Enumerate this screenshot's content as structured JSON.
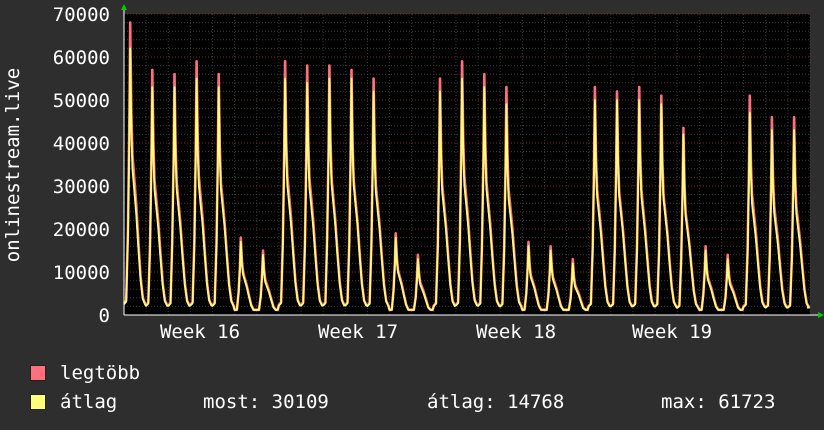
{
  "chart_data": {
    "type": "area",
    "ylabel": "onlinestream.live",
    "ylim": [
      0,
      70000
    ],
    "yticks": [
      0,
      10000,
      20000,
      30000,
      40000,
      50000,
      60000,
      70000
    ],
    "ytick_labels": [
      "0",
      "10000",
      "20000",
      "30000",
      "40000",
      "50000",
      "60000",
      "70000"
    ],
    "xticks": [
      "Week 16",
      "Week 17",
      "Week 18",
      "Week 19"
    ],
    "grid": true,
    "series": [
      {
        "name": "legtöbb",
        "color": "#ff6f7c",
        "daily_peaks": [
          68000,
          57000,
          56000,
          59000,
          56000,
          18000,
          15000,
          59000,
          58000,
          58000,
          57000,
          55000,
          19000,
          14000,
          55000,
          59000,
          56000,
          53000,
          17000,
          16000,
          13000,
          53000,
          52000,
          53000,
          51000,
          43500,
          16000,
          14000,
          51000,
          46000,
          46000
        ]
      },
      {
        "name": "átlag",
        "color": "#ffff7a",
        "daily_peaks": [
          62000,
          53000,
          53000,
          55000,
          53000,
          17000,
          14000,
          55000,
          54000,
          55000,
          55000,
          52000,
          18000,
          13000,
          52000,
          55000,
          53000,
          49000,
          16000,
          15000,
          12000,
          50000,
          50000,
          50000,
          49000,
          42000,
          15000,
          13000,
          47000,
          43000,
          43000
        ]
      }
    ]
  },
  "legend": [
    {
      "label": "legtöbb",
      "color": "#ff6f7c"
    },
    {
      "label": "átlag",
      "color": "#ffff7a"
    }
  ],
  "stats": {
    "most": "most: 30109",
    "atlag": "átlag: 14768",
    "max": "max: 61723"
  }
}
